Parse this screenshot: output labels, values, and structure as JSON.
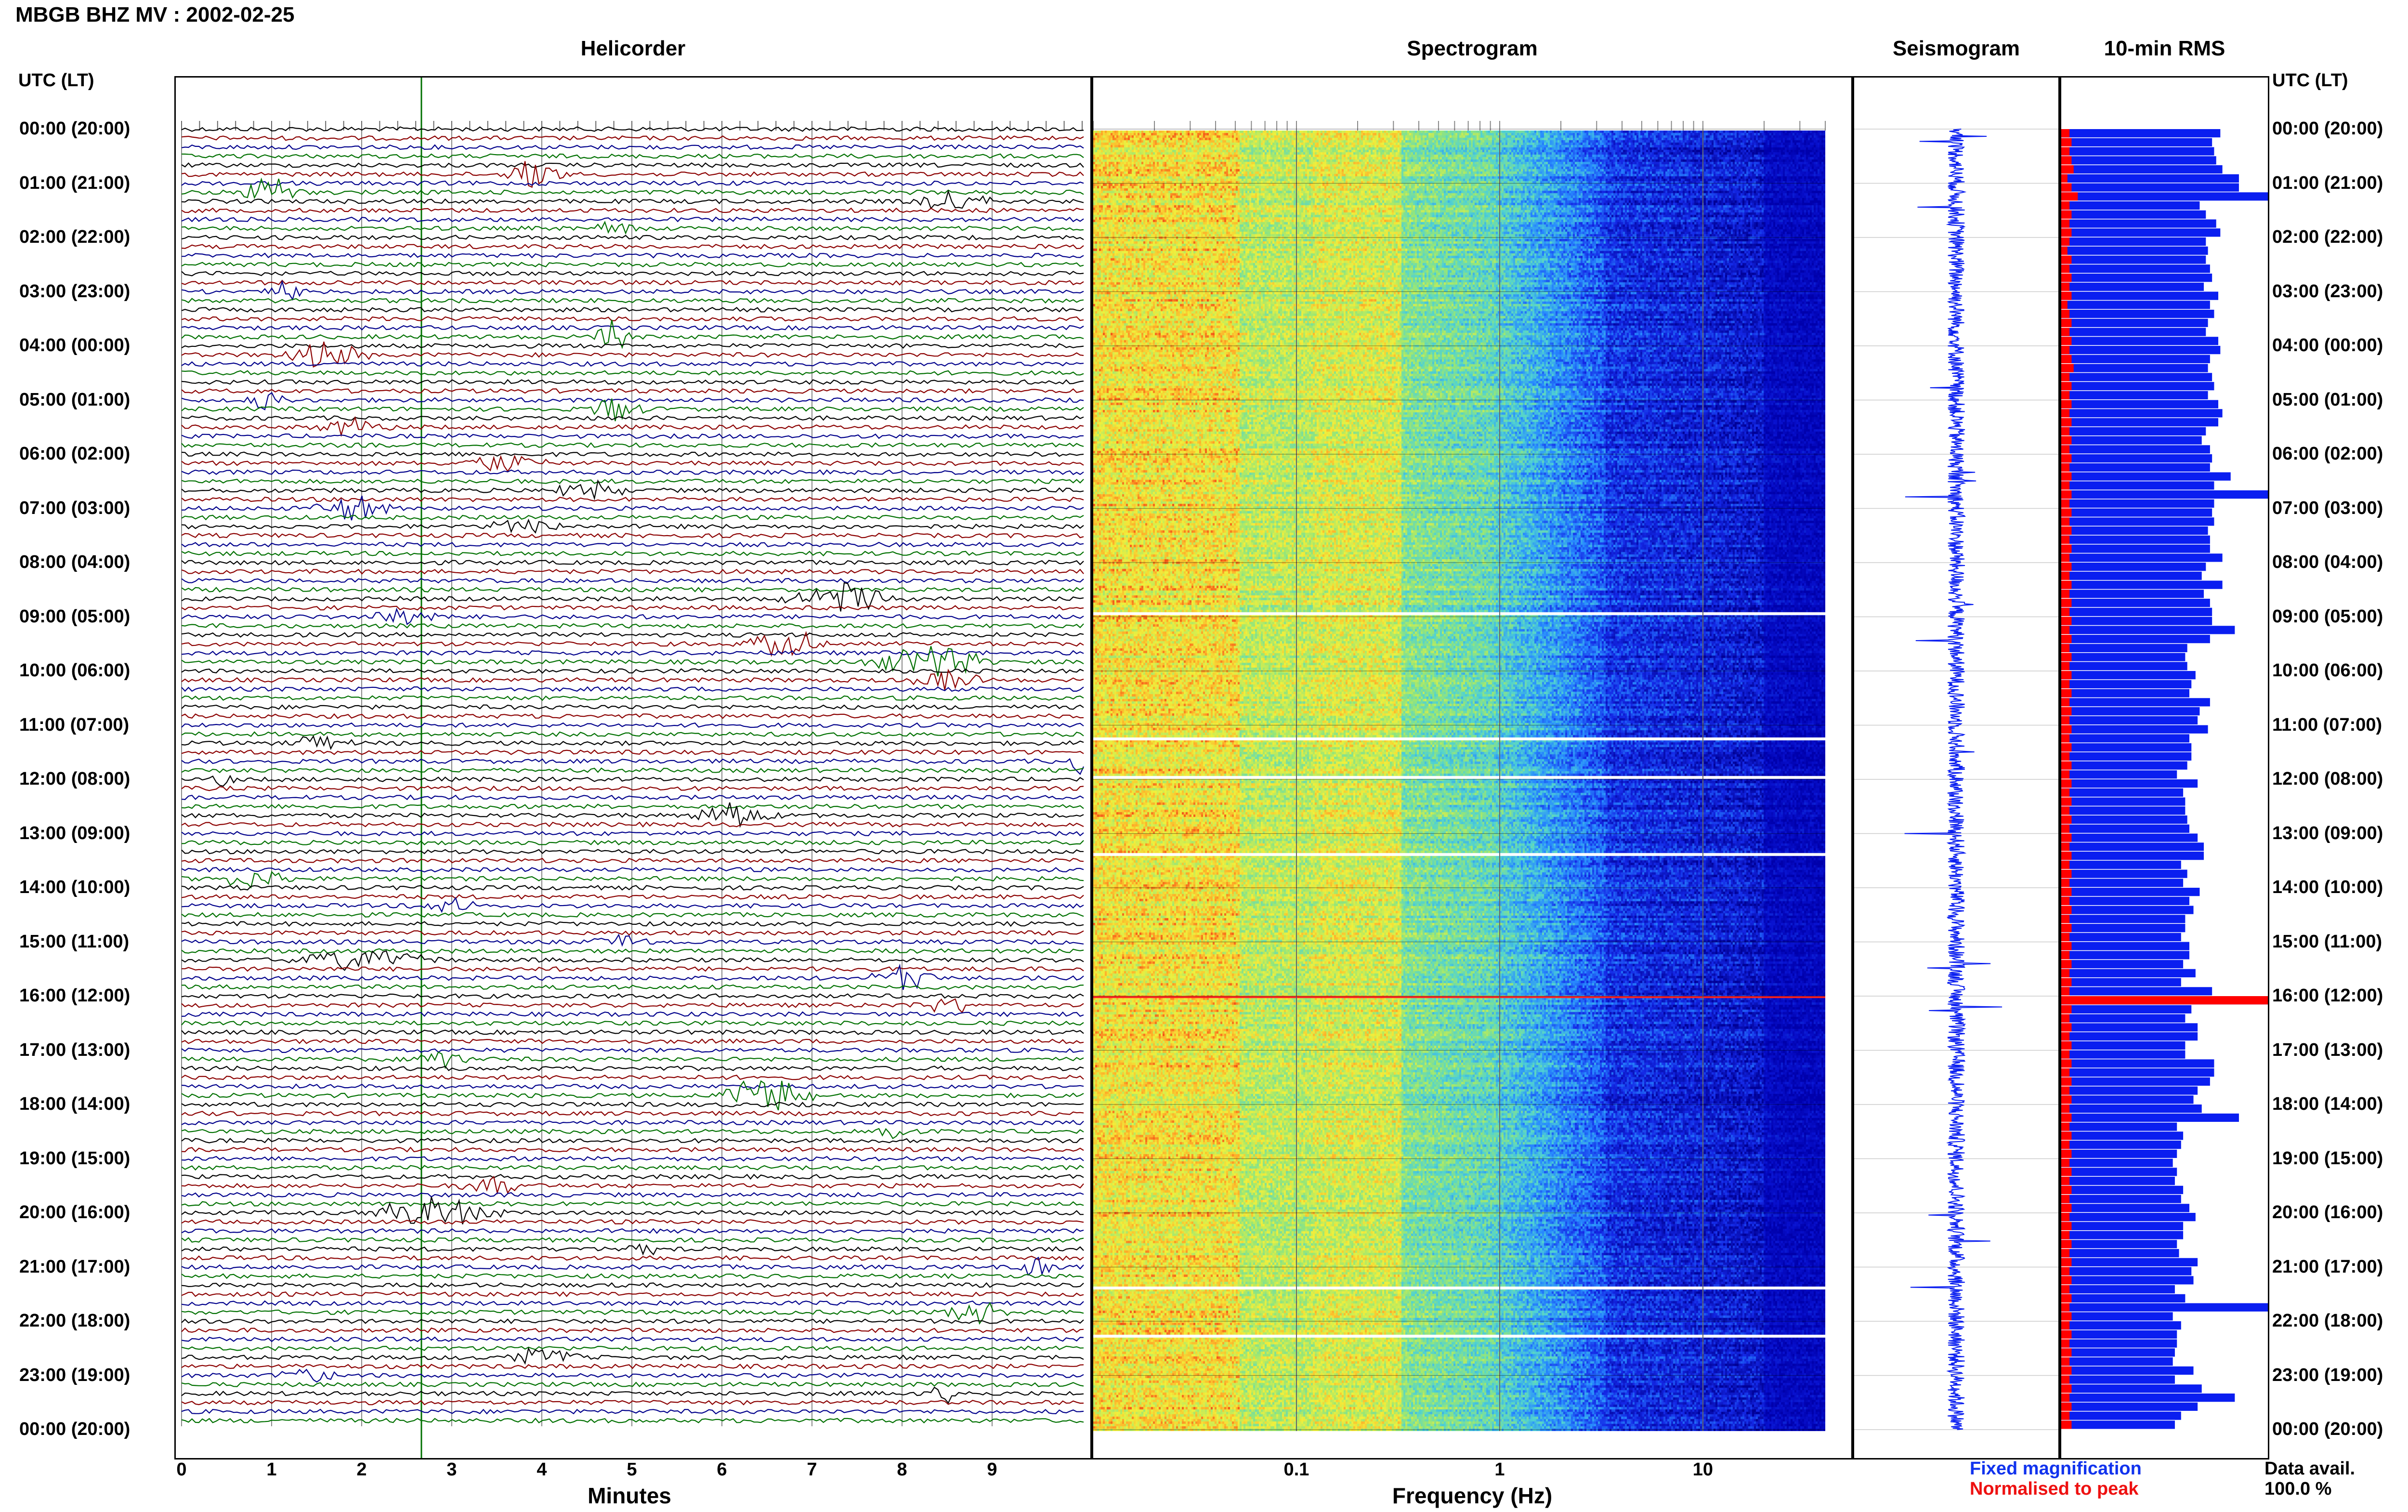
{
  "station_title": "MBGB BHZ MV : 2002-02-25",
  "panels": {
    "helicorder": "Helicorder",
    "spectrogram": "Spectrogram",
    "seismogram": "Seismogram",
    "rms": "10-min RMS"
  },
  "axis_header_left": "UTC (LT)",
  "axis_header_right": "UTC (LT)",
  "time_labels": [
    "00:00 (20:00)",
    "01:00 (21:00)",
    "02:00 (22:00)",
    "03:00 (23:00)",
    "04:00 (00:00)",
    "05:00 (01:00)",
    "06:00 (02:00)",
    "07:00 (03:00)",
    "08:00 (04:00)",
    "09:00 (05:00)",
    "10:00 (06:00)",
    "11:00 (07:00)",
    "12:00 (08:00)",
    "13:00 (09:00)",
    "14:00 (10:00)",
    "15:00 (11:00)",
    "16:00 (12:00)",
    "17:00 (13:00)",
    "18:00 (14:00)",
    "19:00 (15:00)",
    "20:00 (16:00)",
    "21:00 (17:00)",
    "22:00 (18:00)",
    "23:00 (19:00)",
    "00:00 (20:00)"
  ],
  "helicorder_x": {
    "label": "Minutes",
    "ticks": [
      "0",
      "1",
      "2",
      "3",
      "4",
      "5",
      "6",
      "7",
      "8",
      "9"
    ]
  },
  "spectrogram_x": {
    "label": "Frequency (Hz)",
    "ticks": [
      "0.1",
      "1",
      "10"
    ],
    "scale": "log"
  },
  "legend": {
    "fixed": "Fixed magnification",
    "normalised": "Normalised to peak",
    "fixed_color": "#1133ee",
    "normalised_color": "#ee1111"
  },
  "data_avail": {
    "label": "Data avail.",
    "value": "100.0 %"
  },
  "colors": {
    "black": "#000000",
    "red": "#8b0000",
    "blue": "#00008b",
    "green": "#007000",
    "rms_blue": "#0a1ef0",
    "rms_red": "#ff0000"
  },
  "chart_data": {
    "type": "bar",
    "title": "10-min RMS",
    "orientation": "horizontal",
    "categories_note": "144 ten-minute windows, 00:00 to 24:00 UTC",
    "series": [
      {
        "name": "Fixed magnification",
        "values": [
          0.77,
          0.73,
          0.74,
          0.75,
          0.78,
          0.86,
          0.86,
          1.0,
          0.67,
          0.7,
          0.75,
          0.77,
          0.7,
          0.71,
          0.7,
          0.72,
          0.73,
          0.69,
          0.76,
          0.72,
          0.74,
          0.71,
          0.7,
          0.76,
          0.77,
          0.72,
          0.71,
          0.73,
          0.74,
          0.71,
          0.76,
          0.78,
          0.76,
          0.7,
          0.68,
          0.72,
          0.73,
          0.72,
          0.82,
          0.74,
          1.0,
          0.74,
          0.73,
          0.74,
          0.71,
          0.72,
          0.72,
          0.78,
          0.7,
          0.68,
          0.78,
          0.69,
          0.72,
          0.73,
          0.73,
          0.84,
          0.72,
          0.61,
          0.6,
          0.61,
          0.65,
          0.63,
          0.62,
          0.72,
          0.67,
          0.66,
          0.71,
          0.62,
          0.63,
          0.63,
          0.61,
          0.56,
          0.66,
          0.59,
          0.6,
          0.6,
          0.61,
          0.62,
          0.66,
          0.69,
          0.69,
          0.58,
          0.61,
          0.59,
          0.67,
          0.62,
          0.64,
          0.6,
          0.6,
          0.58,
          0.62,
          0.62,
          0.59,
          0.65,
          0.58,
          0.73,
          1.0,
          0.63,
          0.6,
          0.66,
          0.66,
          0.6,
          0.6,
          0.74,
          0.74,
          0.72,
          0.66,
          0.64,
          0.68,
          0.86,
          0.56,
          0.59,
          0.58,
          0.56,
          0.54,
          0.56,
          0.55,
          0.59,
          0.58,
          0.62,
          0.65,
          0.59,
          0.59,
          0.56,
          0.57,
          0.66,
          0.63,
          0.64,
          0.55,
          0.6,
          1.0,
          0.54,
          0.58,
          0.56,
          0.56,
          0.55,
          0.54,
          0.64,
          0.55,
          0.68,
          0.84,
          0.66,
          0.58,
          0.55
        ]
      },
      {
        "name": "Normalised to peak",
        "values": [
          0.04,
          0.05,
          0.04,
          0.05,
          0.06,
          0.03,
          0.05,
          0.08,
          0.04,
          0.05,
          0.04,
          0.05,
          0.04,
          0.03,
          0.05,
          0.04,
          0.05,
          0.04,
          0.05,
          0.03,
          0.04,
          0.05,
          0.04,
          0.05,
          0.04,
          0.05,
          0.06,
          0.04,
          0.05,
          0.04,
          0.05,
          0.04,
          0.05,
          0.04,
          0.05,
          0.04,
          0.05,
          0.04,
          0.05,
          0.04,
          0.05,
          0.04,
          0.05,
          0.04,
          0.05,
          0.04,
          0.05,
          0.04,
          0.05,
          0.04,
          0.05,
          0.04,
          0.05,
          0.04,
          0.05,
          0.04,
          0.05,
          0.04,
          0.05,
          0.04,
          0.05,
          0.04,
          0.05,
          0.04,
          0.05,
          0.04,
          0.05,
          0.04,
          0.05,
          0.04,
          0.05,
          0.04,
          0.05,
          0.04,
          0.05,
          0.04,
          0.05,
          0.04,
          0.05,
          0.04,
          0.05,
          0.04,
          0.05,
          0.04,
          0.05,
          0.04,
          0.05,
          0.04,
          0.05,
          0.04,
          0.05,
          0.04,
          0.05,
          0.04,
          0.05,
          0.04,
          1.0,
          0.05,
          0.04,
          0.05,
          0.04,
          0.05,
          0.04,
          0.05,
          0.04,
          0.05,
          0.04,
          0.05,
          0.04,
          0.05,
          0.04,
          0.05,
          0.04,
          0.05,
          0.04,
          0.05,
          0.04,
          0.05,
          0.04,
          0.05,
          0.04,
          0.05,
          0.04,
          0.05,
          0.04,
          0.05,
          0.04,
          0.05,
          0.04,
          0.05,
          0.04,
          0.05,
          0.04,
          0.05,
          0.04,
          0.05,
          0.04,
          0.05,
          0.04,
          0.05,
          0.04,
          0.05,
          0.04,
          0.05
        ]
      }
    ],
    "xlim": [
      0,
      1
    ],
    "grid": false
  }
}
